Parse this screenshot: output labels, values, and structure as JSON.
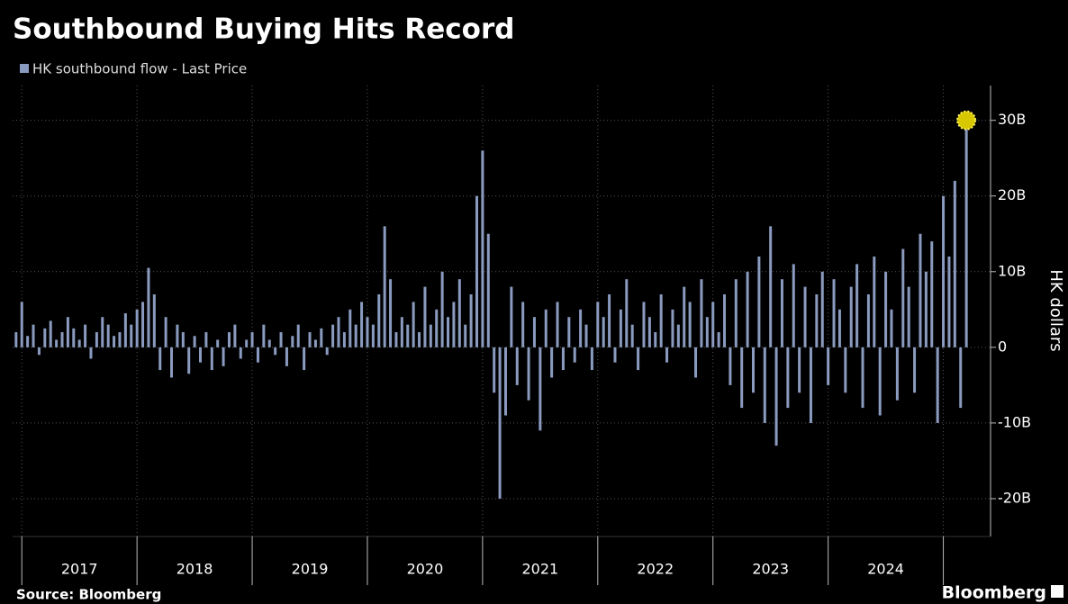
{
  "chart_data": {
    "type": "bar",
    "title": "Southbound Buying Hits Record",
    "legend": "HK southbound flow - Last Price",
    "y_label": "HK dollars",
    "source": "Source: Bloomberg",
    "brand": "Bloomberg",
    "color": "#8a9bbf",
    "grid": true,
    "xlim": [
      2016.92,
      2025.41
    ],
    "xticks": [
      2017,
      2018,
      2019,
      2020,
      2021,
      2022,
      2023,
      2024
    ],
    "ylim": [
      -25000000000.0,
      34600000000.0
    ],
    "yticks": [
      {
        "value": -20000000000.0,
        "label": "-20B"
      },
      {
        "value": -10000000000.0,
        "label": "-10B"
      },
      0,
      {
        "value": 10000000000.0,
        "label": "10B"
      },
      {
        "value": 20000000000.0,
        "label": "20B"
      },
      {
        "value": 30000000000.0,
        "label": "30B"
      }
    ],
    "x": [
      2016.95,
      2017.0,
      2017.05,
      2017.1,
      2017.15,
      2017.2,
      2017.25,
      2017.3,
      2017.35,
      2017.4,
      2017.45,
      2017.5,
      2017.55,
      2017.6,
      2017.65,
      2017.7,
      2017.75,
      2017.8,
      2017.85,
      2017.9,
      2017.95,
      2018.0,
      2018.05,
      2018.1,
      2018.15,
      2018.2,
      2018.25,
      2018.3,
      2018.35,
      2018.4,
      2018.45,
      2018.5,
      2018.55,
      2018.6,
      2018.65,
      2018.7,
      2018.75,
      2018.8,
      2018.85,
      2018.9,
      2018.95,
      2019.0,
      2019.05,
      2019.1,
      2019.15,
      2019.2,
      2019.25,
      2019.3,
      2019.35,
      2019.4,
      2019.45,
      2019.5,
      2019.55,
      2019.6,
      2019.65,
      2019.7,
      2019.75,
      2019.8,
      2019.85,
      2019.9,
      2019.95,
      2020.0,
      2020.05,
      2020.1,
      2020.15,
      2020.2,
      2020.25,
      2020.3,
      2020.35,
      2020.4,
      2020.45,
      2020.5,
      2020.55,
      2020.6,
      2020.65,
      2020.7,
      2020.75,
      2020.8,
      2020.85,
      2020.9,
      2020.95,
      2021.0,
      2021.05,
      2021.1,
      2021.15,
      2021.2,
      2021.25,
      2021.3,
      2021.35,
      2021.4,
      2021.45,
      2021.5,
      2021.55,
      2021.6,
      2021.65,
      2021.7,
      2021.75,
      2021.8,
      2021.85,
      2021.9,
      2021.95,
      2022.0,
      2022.05,
      2022.1,
      2022.15,
      2022.2,
      2022.25,
      2022.3,
      2022.35,
      2022.4,
      2022.45,
      2022.5,
      2022.55,
      2022.6,
      2022.65,
      2022.7,
      2022.75,
      2022.8,
      2022.85,
      2022.9,
      2022.95,
      2023.0,
      2023.05,
      2023.1,
      2023.15,
      2023.2,
      2023.25,
      2023.3,
      2023.35,
      2023.4,
      2023.45,
      2023.5,
      2023.55,
      2023.6,
      2023.65,
      2023.7,
      2023.75,
      2023.8,
      2023.85,
      2023.9,
      2023.95,
      2024.0,
      2024.05,
      2024.1,
      2024.15,
      2024.2,
      2024.25,
      2024.3,
      2024.35,
      2024.4,
      2024.45,
      2024.5,
      2024.55,
      2024.6,
      2024.65,
      2024.7,
      2024.75,
      2024.8,
      2024.85,
      2024.9,
      2024.95,
      2025.0,
      2025.05,
      2025.1,
      2025.15,
      2025.2
    ],
    "values": [
      2000000000.0,
      6000000000.0,
      1500000000.0,
      3000000000.0,
      -1000000000.0,
      2500000000.0,
      3500000000.0,
      1000000000.0,
      2000000000.0,
      4000000000.0,
      2500000000.0,
      1000000000.0,
      3000000000.0,
      -1500000000.0,
      2000000000.0,
      4000000000.0,
      3000000000.0,
      1500000000.0,
      2000000000.0,
      4500000000.0,
      3000000000.0,
      5000000000.0,
      6000000000.0,
      10500000000.0,
      7000000000.0,
      -3000000000.0,
      4000000000.0,
      -4000000000.0,
      3000000000.0,
      2000000000.0,
      -3500000000.0,
      1500000000.0,
      -2000000000.0,
      2000000000.0,
      -3000000000.0,
      1000000000.0,
      -2500000000.0,
      2000000000.0,
      3000000000.0,
      -1500000000.0,
      1000000000.0,
      2000000000.0,
      -2000000000.0,
      3000000000.0,
      1000000000.0,
      -1000000000.0,
      2000000000.0,
      -2500000000.0,
      1500000000.0,
      3000000000.0,
      -3000000000.0,
      2000000000.0,
      1000000000.0,
      2500000000.0,
      -1000000000.0,
      3000000000.0,
      4000000000.0,
      2000000000.0,
      5000000000.0,
      3000000000.0,
      6000000000.0,
      4000000000.0,
      3000000000.0,
      7000000000.0,
      16000000000.0,
      9000000000.0,
      2000000000.0,
      4000000000.0,
      3000000000.0,
      6000000000.0,
      2000000000.0,
      8000000000.0,
      3000000000.0,
      5000000000.0,
      10000000000.0,
      4000000000.0,
      6000000000.0,
      9000000000.0,
      3000000000.0,
      7000000000.0,
      20000000000.0,
      26000000000.0,
      15000000000.0,
      -6000000000.0,
      -20000000000.0,
      -9000000000.0,
      8000000000.0,
      -5000000000.0,
      6000000000.0,
      -7000000000.0,
      4000000000.0,
      -11000000000.0,
      5000000000.0,
      -4000000000.0,
      6000000000.0,
      -3000000000.0,
      4000000000.0,
      -2000000000.0,
      5000000000.0,
      3000000000.0,
      -3000000000.0,
      6000000000.0,
      4000000000.0,
      7000000000.0,
      -2000000000.0,
      5000000000.0,
      9000000000.0,
      3000000000.0,
      -3000000000.0,
      6000000000.0,
      4000000000.0,
      2000000000.0,
      7000000000.0,
      -2000000000.0,
      5000000000.0,
      3000000000.0,
      8000000000.0,
      6000000000.0,
      -4000000000.0,
      9000000000.0,
      4000000000.0,
      6000000000.0,
      2000000000.0,
      7000000000.0,
      -5000000000.0,
      9000000000.0,
      -8000000000.0,
      10000000000.0,
      -6000000000.0,
      12000000000.0,
      -10000000000.0,
      16000000000.0,
      -13000000000.0,
      9000000000.0,
      -8000000000.0,
      11000000000.0,
      -6000000000.0,
      8000000000.0,
      -10000000000.0,
      7000000000.0,
      10000000000.0,
      -5000000000.0,
      9000000000.0,
      5000000000.0,
      -6000000000.0,
      8000000000.0,
      11000000000.0,
      -8000000000.0,
      7000000000.0,
      12000000000.0,
      -9000000000.0,
      10000000000.0,
      5000000000.0,
      -7000000000.0,
      13000000000.0,
      8000000000.0,
      -6000000000.0,
      15000000000.0,
      10000000000.0,
      14000000000.0,
      -10000000000.0,
      20000000000.0,
      12000000000.0,
      22000000000.0,
      -8000000000.0,
      30000000000.0
    ]
  }
}
